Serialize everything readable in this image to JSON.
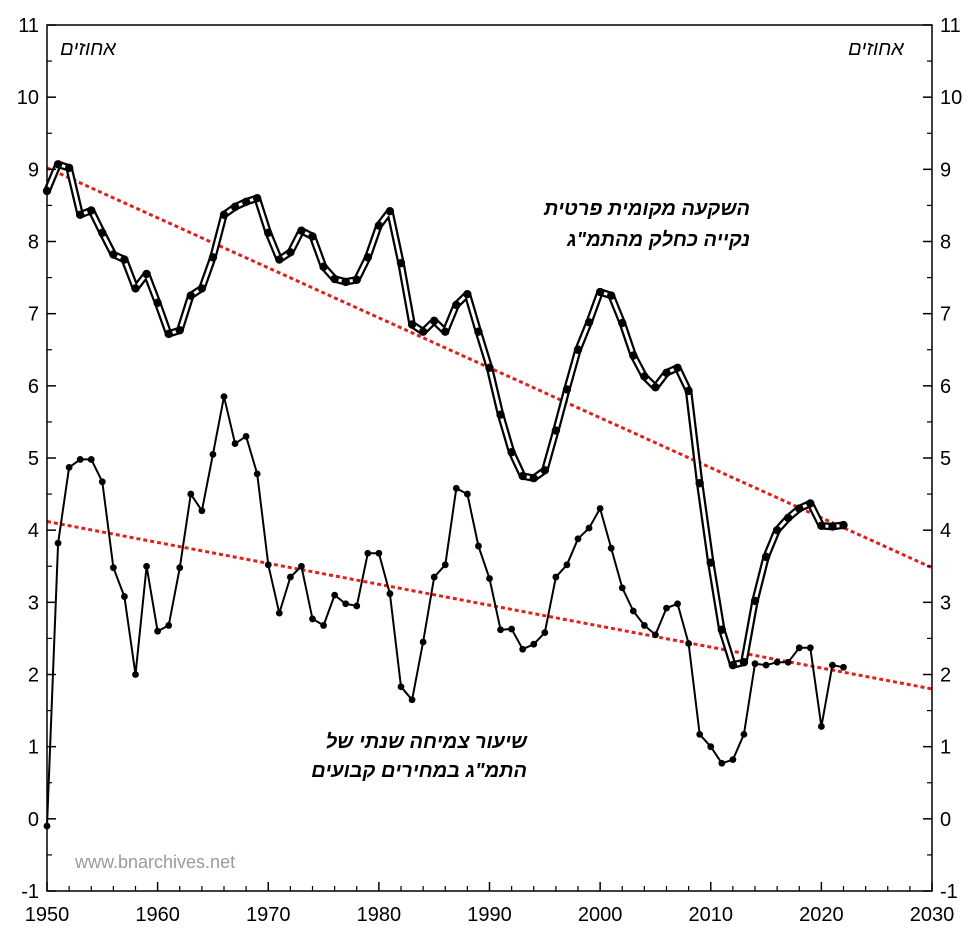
{
  "chart_data": {
    "type": "line",
    "xlim": [
      1950,
      2030
    ],
    "ylim": [
      -1,
      11
    ],
    "x_ticks": [
      1950,
      1960,
      1970,
      1980,
      1990,
      2000,
      2010,
      2020,
      2030
    ],
    "y_ticks": [
      -1,
      0,
      1,
      2,
      3,
      4,
      5,
      6,
      7,
      8,
      9,
      10,
      11
    ],
    "y_unit_left": "אחוזים",
    "y_unit_right": "אחוזים",
    "watermark": "www.bnarchives.net",
    "grid": false,
    "colors": {
      "series": "#000000",
      "trend": "#e0201b"
    },
    "series": [
      {
        "label_lines": [
          "השקעה מקומית פרטית",
          "נקייה כחלק מהתמ\"ג"
        ],
        "style": "double-line",
        "x": [
          1950,
          1951,
          1952,
          1953,
          1954,
          1955,
          1956,
          1957,
          1958,
          1959,
          1960,
          1961,
          1962,
          1963,
          1964,
          1965,
          1966,
          1967,
          1968,
          1969,
          1970,
          1971,
          1972,
          1973,
          1974,
          1975,
          1976,
          1977,
          1978,
          1979,
          1980,
          1981,
          1982,
          1983,
          1984,
          1985,
          1986,
          1987,
          1988,
          1989,
          1990,
          1991,
          1992,
          1993,
          1994,
          1995,
          1996,
          1997,
          1998,
          1999,
          2000,
          2001,
          2002,
          2003,
          2004,
          2005,
          2006,
          2007,
          2008,
          2009,
          2010,
          2011,
          2012,
          2013,
          2014,
          2015,
          2016,
          2017,
          2018,
          2019,
          2020,
          2021,
          2022
        ],
        "y": [
          8.7,
          9.07,
          9.02,
          8.37,
          8.43,
          8.12,
          7.82,
          7.75,
          7.35,
          7.55,
          7.15,
          6.72,
          6.77,
          7.25,
          7.35,
          7.78,
          8.37,
          8.48,
          8.55,
          8.6,
          8.12,
          7.75,
          7.85,
          8.15,
          8.07,
          7.65,
          7.48,
          7.44,
          7.47,
          7.78,
          8.22,
          8.42,
          7.7,
          6.85,
          6.75,
          6.9,
          6.75,
          7.12,
          7.27,
          6.75,
          6.25,
          5.6,
          5.08,
          4.75,
          4.72,
          4.83,
          5.38,
          5.95,
          6.5,
          6.88,
          7.3,
          7.25,
          6.87,
          6.42,
          6.13,
          5.98,
          6.18,
          6.25,
          5.93,
          4.65,
          3.55,
          2.62,
          2.13,
          2.17,
          3.02,
          3.63,
          4.0,
          4.17,
          4.3,
          4.37,
          4.06,
          4.05,
          4.07
        ]
      },
      {
        "label_lines": [
          "שיעור צמיחה שנתי של",
          "התמ\"ג במחירים קבועים"
        ],
        "style": "single-line",
        "x": [
          1950,
          1951,
          1952,
          1953,
          1954,
          1955,
          1956,
          1957,
          1958,
          1959,
          1960,
          1961,
          1962,
          1963,
          1964,
          1965,
          1966,
          1967,
          1968,
          1969,
          1970,
          1971,
          1972,
          1973,
          1974,
          1975,
          1976,
          1977,
          1978,
          1979,
          1980,
          1981,
          1982,
          1983,
          1984,
          1985,
          1986,
          1987,
          1988,
          1989,
          1990,
          1991,
          1992,
          1993,
          1994,
          1995,
          1996,
          1997,
          1998,
          1999,
          2000,
          2001,
          2002,
          2003,
          2004,
          2005,
          2006,
          2007,
          2008,
          2009,
          2010,
          2011,
          2012,
          2013,
          2014,
          2015,
          2016,
          2017,
          2018,
          2019,
          2020,
          2021,
          2022
        ],
        "y": [
          -0.1,
          3.82,
          4.87,
          4.98,
          4.98,
          4.67,
          3.48,
          3.08,
          2.0,
          3.5,
          2.6,
          2.68,
          3.48,
          4.5,
          4.27,
          5.05,
          5.85,
          5.2,
          5.3,
          4.78,
          3.52,
          2.85,
          3.35,
          3.5,
          2.77,
          2.68,
          3.1,
          2.98,
          2.95,
          3.68,
          3.68,
          3.12,
          1.83,
          1.65,
          2.45,
          3.35,
          3.52,
          4.58,
          4.5,
          3.78,
          3.33,
          2.62,
          2.63,
          2.35,
          2.42,
          2.58,
          3.35,
          3.52,
          3.88,
          4.03,
          4.3,
          3.75,
          3.2,
          2.88,
          2.68,
          2.55,
          2.92,
          2.98,
          2.43,
          1.17,
          1.0,
          0.77,
          0.82,
          1.17,
          2.15,
          2.13,
          2.17,
          2.17,
          2.37,
          2.37,
          1.28,
          2.13,
          2.1
        ]
      }
    ],
    "trend_lines": [
      {
        "x": [
          1950,
          2030
        ],
        "y": [
          9.02,
          3.48
        ]
      },
      {
        "x": [
          1950,
          2030
        ],
        "y": [
          4.12,
          1.8
        ]
      }
    ]
  }
}
